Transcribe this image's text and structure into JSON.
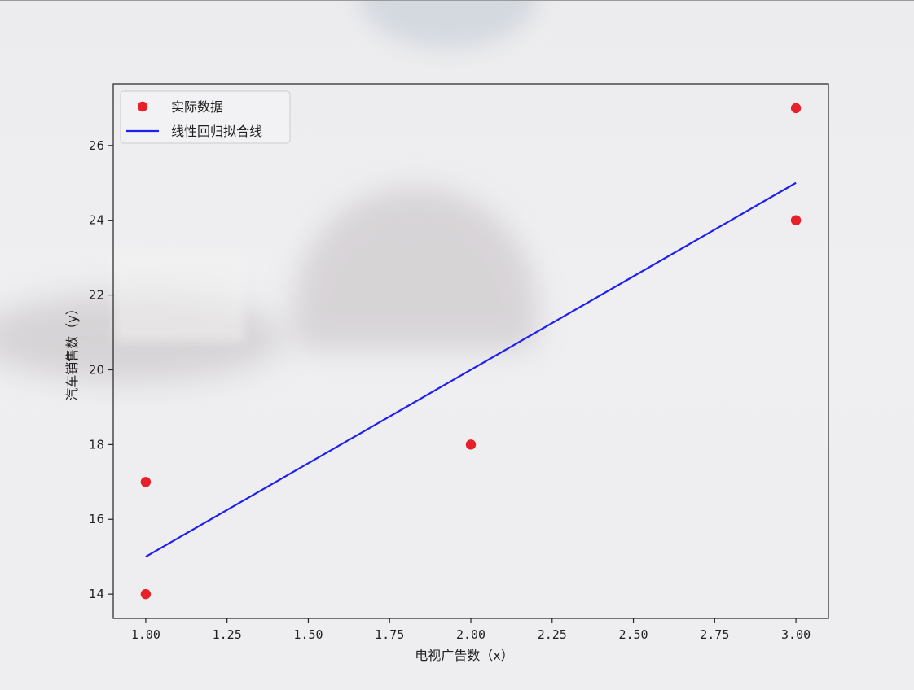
{
  "chart_data": {
    "type": "scatter",
    "xlabel": "电视广告数（x）",
    "ylabel": "汽车销售数（y）",
    "xlim": [
      0.9,
      3.1
    ],
    "ylim": [
      13.35,
      27.65
    ],
    "xticks": [
      1.0,
      1.25,
      1.5,
      1.75,
      2.0,
      2.25,
      2.5,
      2.75,
      3.0
    ],
    "xtick_labels": [
      "1.00",
      "1.25",
      "1.50",
      "1.75",
      "2.00",
      "2.25",
      "2.50",
      "2.75",
      "3.00"
    ],
    "yticks": [
      14,
      16,
      18,
      20,
      22,
      24,
      26
    ],
    "ytick_labels": [
      "14",
      "16",
      "18",
      "20",
      "22",
      "24",
      "26"
    ],
    "grid": false,
    "legend_position": "upper-left",
    "series": [
      {
        "name": "实际数据",
        "kind": "scatter",
        "color": "#e8202a",
        "points": [
          {
            "x": 1,
            "y": 14
          },
          {
            "x": 1,
            "y": 17
          },
          {
            "x": 2,
            "y": 18
          },
          {
            "x": 3,
            "y": 24
          },
          {
            "x": 3,
            "y": 27
          }
        ]
      },
      {
        "name": "线性回归拟合线",
        "kind": "line",
        "color": "#1f1ff0",
        "points": [
          {
            "x": 1,
            "y": 15
          },
          {
            "x": 2,
            "y": 20
          },
          {
            "x": 3,
            "y": 25
          }
        ]
      }
    ]
  }
}
